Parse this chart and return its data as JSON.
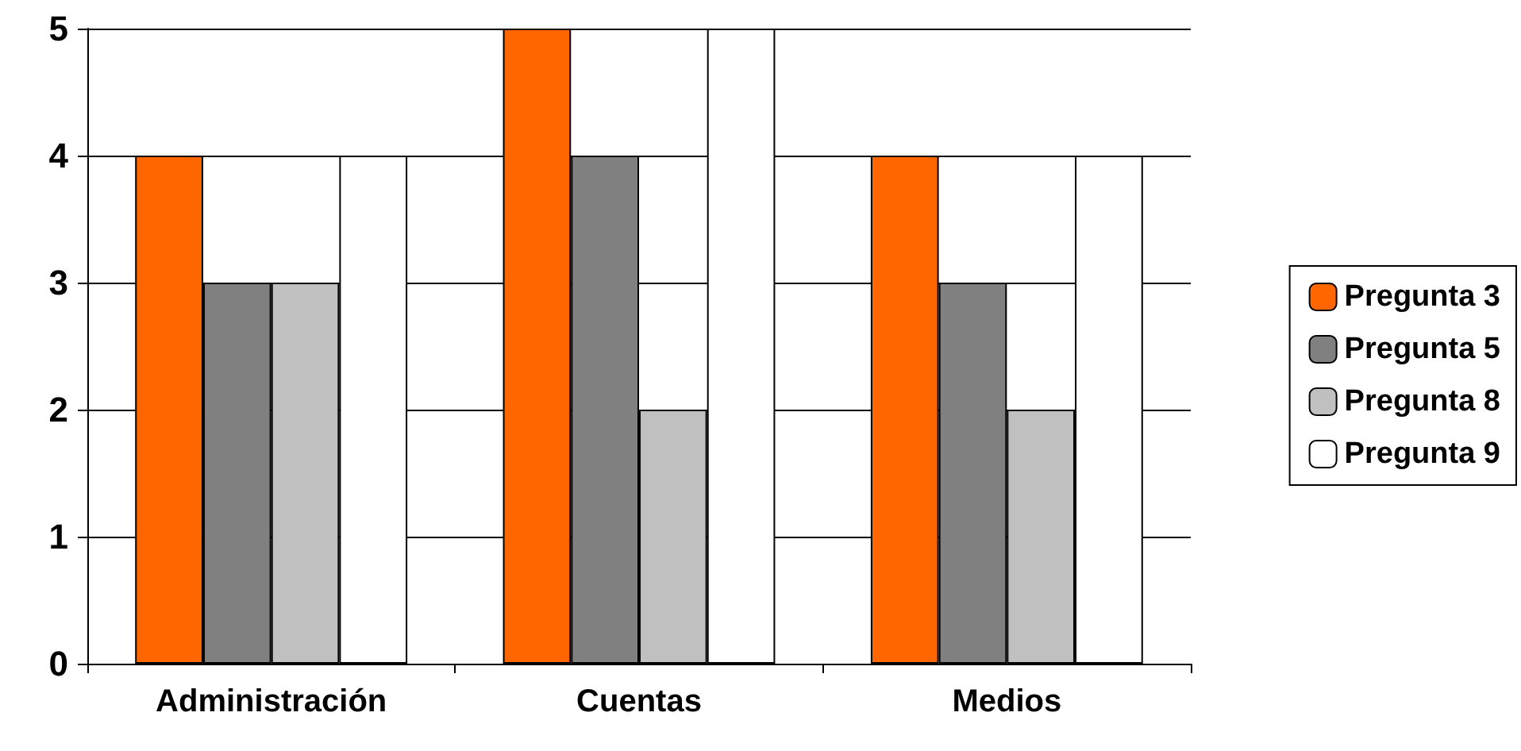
{
  "chart_data": {
    "type": "bar",
    "categories": [
      "Administración",
      "Cuentas",
      "Medios"
    ],
    "series": [
      {
        "name": "Pregunta 3",
        "color": "#ff6600",
        "values": [
          4,
          5,
          4
        ]
      },
      {
        "name": "Pregunta 5",
        "color": "#808080",
        "values": [
          3,
          4,
          3
        ]
      },
      {
        "name": "Pregunta 8",
        "color": "#c0c0c0",
        "values": [
          3,
          2,
          2
        ]
      },
      {
        "name": "Pregunta 9",
        "color": "#ffffff",
        "values": [
          4,
          5,
          4
        ]
      }
    ],
    "ylim": [
      0,
      5
    ],
    "yticks": [
      0,
      1,
      2,
      3,
      4,
      5
    ],
    "grid": "y",
    "legend": "right"
  }
}
